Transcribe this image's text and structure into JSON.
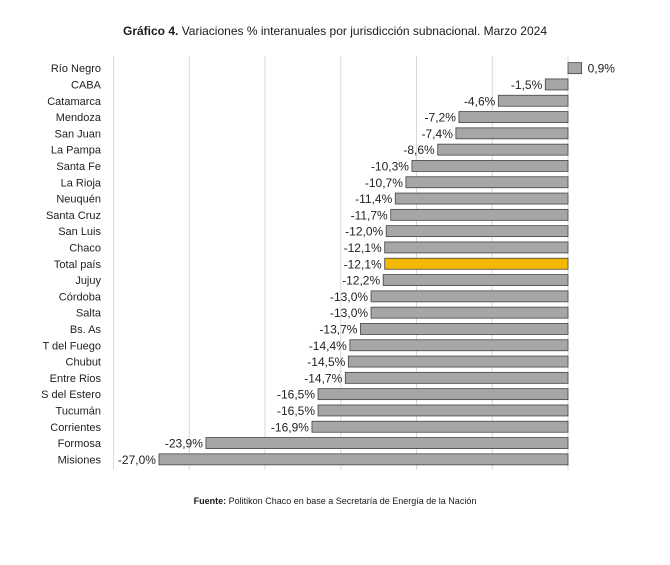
{
  "chart_data": {
    "type": "bar",
    "orientation": "horizontal",
    "title_bold": "Gráfico 4.",
    "title": "Variaciones % interanuales por jurisdicción subnacional. Marzo 2024",
    "xlim": [
      -30,
      0
    ],
    "grid": true,
    "categories": [
      "Río Negro",
      "CABA",
      "Catamarca",
      "Mendoza",
      "San Juan",
      "La Pampa",
      "Santa Fe",
      "La Rioja",
      "Neuquén",
      "Santa Cruz",
      "San Luis",
      "Chaco",
      "Total país",
      "Jujuy",
      "Córdoba",
      "Salta",
      "Bs. As",
      "T del Fuego",
      "Chubut",
      "Entre Rios",
      "S del Estero",
      "Tucumán",
      "Corrientes",
      "Formosa",
      "Misiones"
    ],
    "values": [
      0.9,
      -1.5,
      -4.6,
      -7.2,
      -7.4,
      -8.6,
      -10.3,
      -10.7,
      -11.4,
      -11.7,
      -12.0,
      -12.1,
      -12.1,
      -12.2,
      -13.0,
      -13.0,
      -13.7,
      -14.4,
      -14.5,
      -14.7,
      -16.5,
      -16.5,
      -16.9,
      -23.9,
      -27.0
    ],
    "labels": [
      "0,9%",
      "-1,5%",
      "-4,6%",
      "-7,2%",
      "-7,4%",
      "-8,6%",
      "-10,3%",
      "-10,7%",
      "-11,4%",
      "-11,7%",
      "-12,0%",
      "-12,1%",
      "-12,1%",
      "-12,2%",
      "-13,0%",
      "-13,0%",
      "-13,7%",
      "-14,4%",
      "-14,5%",
      "-14,7%",
      "-16,5%",
      "-16,5%",
      "-16,9%",
      "-23,9%",
      "-27,0%"
    ],
    "highlight": "Total país",
    "colors": {
      "bar": "#a6a6a6",
      "bar_edge": "#444444",
      "highlight": "#f5b800",
      "grid": "#d9d9d9"
    }
  },
  "footer": {
    "source_bold": "Fuente:",
    "source_text": "Politikon Chaco en base a Secretaría de Energía de la Nación"
  }
}
